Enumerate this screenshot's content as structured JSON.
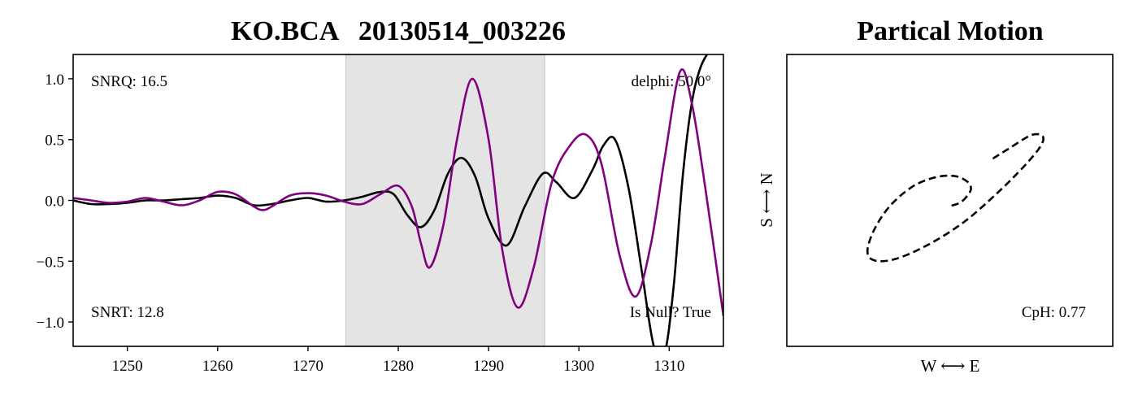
{
  "chart_data": [
    {
      "type": "line",
      "title": "KO.BCA   20130514_003226",
      "xlabel": "",
      "ylabel": "",
      "xlim": [
        1244,
        1316
      ],
      "ylim": [
        -1.2,
        1.2
      ],
      "x_ticks": [
        1250,
        1260,
        1270,
        1280,
        1290,
        1300,
        1310
      ],
      "y_ticks": [
        1.0,
        0.5,
        0.0,
        -0.5,
        -1.0
      ],
      "y_tick_labels": [
        "1.0",
        "0.5",
        "0.0",
        "−0.5",
        "−1.0"
      ],
      "grid": false,
      "shaded_window": {
        "x0": 1274.2,
        "x1": 1296.2,
        "color": "#e4e4e4"
      },
      "annotations": {
        "snrq": "SNRQ: 16.5",
        "snrt": "SNRT: 12.8",
        "delphi": "delphi: 50.0°",
        "is_null": "Is Null? True"
      },
      "series": [
        {
          "color": "#000000",
          "x": [
            1244,
            1246,
            1248,
            1250,
            1252,
            1254,
            1256,
            1258,
            1260,
            1262,
            1264,
            1266,
            1268,
            1270,
            1272,
            1274,
            1276,
            1278,
            1279.5,
            1281,
            1282.5,
            1284,
            1285.5,
            1287,
            1288.5,
            1290,
            1292,
            1294,
            1296,
            1297.5,
            1299.5,
            1301.5,
            1302.7,
            1304,
            1305.5,
            1307,
            1308.3,
            1309.5,
            1310.5,
            1311.5,
            1312.5,
            1313.5,
            1314.8,
            1316
          ],
          "y": [
            0.0,
            -0.03,
            -0.03,
            -0.02,
            0.0,
            0.0,
            0.01,
            0.02,
            0.04,
            0.02,
            -0.04,
            -0.03,
            0.0,
            0.02,
            -0.01,
            0.0,
            0.03,
            0.07,
            0.05,
            -0.12,
            -0.22,
            -0.08,
            0.22,
            0.35,
            0.2,
            -0.15,
            -0.37,
            -0.05,
            0.22,
            0.15,
            0.02,
            0.25,
            0.45,
            0.5,
            0.1,
            -0.6,
            -1.2,
            -1.25,
            -0.7,
            0.2,
            0.8,
            1.1,
            1.28,
            1.5
          ]
        },
        {
          "color": "#800080",
          "x": [
            1244,
            1246,
            1248,
            1250,
            1252,
            1254,
            1256,
            1258,
            1260,
            1262,
            1264,
            1265,
            1266,
            1268,
            1270,
            1272,
            1274,
            1276,
            1278,
            1280,
            1281.5,
            1282.5,
            1283.5,
            1285,
            1286.5,
            1288.2,
            1290,
            1291.5,
            1293.2,
            1295,
            1297,
            1299,
            1300.8,
            1302.5,
            1304.5,
            1306.3,
            1308,
            1309.5,
            1311.2,
            1312.5,
            1314,
            1316
          ],
          "y": [
            0.02,
            0.0,
            -0.02,
            -0.01,
            0.02,
            -0.01,
            -0.04,
            0.0,
            0.07,
            0.05,
            -0.05,
            -0.08,
            -0.05,
            0.04,
            0.06,
            0.04,
            -0.01,
            -0.03,
            0.05,
            0.12,
            -0.05,
            -0.35,
            -0.55,
            -0.2,
            0.5,
            1.0,
            0.5,
            -0.4,
            -0.88,
            -0.55,
            0.15,
            0.45,
            0.54,
            0.3,
            -0.45,
            -0.79,
            -0.35,
            0.35,
            1.06,
            0.8,
            0.1,
            -0.95
          ]
        }
      ]
    },
    {
      "type": "line",
      "title": "Partical Motion",
      "xlabel": "W ⟷ E",
      "ylabel": "S ⟷ N",
      "x_ticks": [],
      "y_ticks": [],
      "annotations": {
        "cph": "CpH: 0.77"
      },
      "series": [
        {
          "color": "#000000",
          "line_style": "dashed",
          "x": [
            0.02,
            0.1,
            0.16,
            0.19,
            0.16,
            0.05,
            -0.12,
            -0.32,
            -0.52,
            -0.66,
            -0.72,
            -0.66,
            -0.48,
            -0.2,
            0.12,
            0.42,
            0.66,
            0.8,
            0.82,
            0.72,
            0.52,
            0.36
          ],
          "y": [
            -0.05,
            -0.02,
            0.04,
            0.1,
            0.16,
            0.21,
            0.2,
            0.12,
            -0.05,
            -0.26,
            -0.45,
            -0.53,
            -0.52,
            -0.4,
            -0.2,
            0.06,
            0.3,
            0.47,
            0.56,
            0.57,
            0.45,
            0.35
          ]
        }
      ]
    }
  ]
}
